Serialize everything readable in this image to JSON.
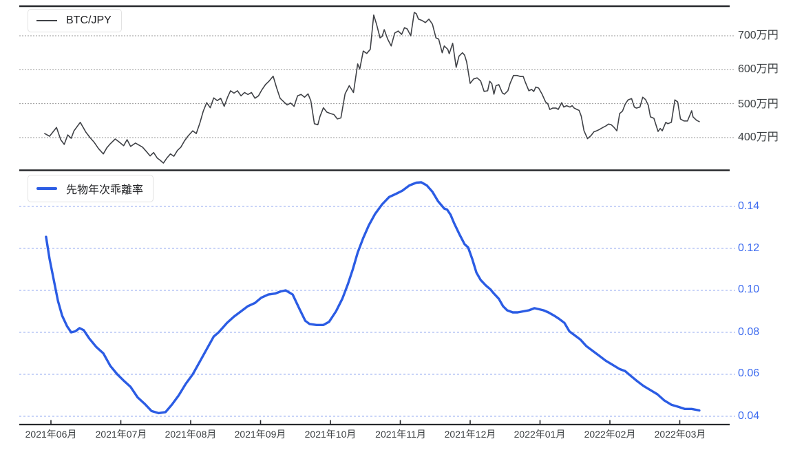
{
  "x_axis": {
    "labels": [
      "2021年06月",
      "2021年07月",
      "2021年08月",
      "2021年09月",
      "2021年10月",
      "2021年11月",
      "2021年12月",
      "2022年01月",
      "2022年02月",
      "2022年03月"
    ]
  },
  "colors": {
    "btc_line": "#3f4146",
    "deviation_line": "#2b5ce4",
    "grid_gray": "#9a9a9a",
    "grid_blue": "#93a9f2",
    "axis_dark": "#26282c",
    "label_dark": "#3c4043",
    "label_blue": "#3d6bef"
  },
  "chart_data": [
    {
      "type": "line",
      "name": "BTC/JPY",
      "color": "#3f4146",
      "ylabel_unit": "万円",
      "ylim": [
        305,
        790
      ],
      "grid": true,
      "legend_position": "top-left",
      "y_ticks": [
        {
          "value": 700,
          "label": "700万円"
        },
        {
          "value": 600,
          "label": "600万円"
        },
        {
          "value": 500,
          "label": "500万円"
        },
        {
          "value": 400,
          "label": "400万円"
        }
      ],
      "x_months": [
        "2021-06",
        "2021-07",
        "2021-08",
        "2021-09",
        "2021-10",
        "2021-11",
        "2021-12",
        "2022-01",
        "2022-02",
        "2022-03"
      ],
      "points": [
        [
          -0.09,
          412
        ],
        [
          -0.02,
          404
        ],
        [
          0.08,
          430
        ],
        [
          0.14,
          394
        ],
        [
          0.19,
          380
        ],
        [
          0.24,
          408
        ],
        [
          0.29,
          398
        ],
        [
          0.33,
          420
        ],
        [
          0.42,
          445
        ],
        [
          0.5,
          416
        ],
        [
          0.56,
          400
        ],
        [
          0.62,
          386
        ],
        [
          0.68,
          368
        ],
        [
          0.75,
          352
        ],
        [
          0.8,
          370
        ],
        [
          0.85,
          382
        ],
        [
          0.92,
          396
        ],
        [
          0.97,
          388
        ],
        [
          1.04,
          376
        ],
        [
          1.09,
          394
        ],
        [
          1.14,
          374
        ],
        [
          1.21,
          384
        ],
        [
          1.31,
          372
        ],
        [
          1.37,
          358
        ],
        [
          1.42,
          346
        ],
        [
          1.47,
          356
        ],
        [
          1.52,
          340
        ],
        [
          1.56,
          334
        ],
        [
          1.61,
          325
        ],
        [
          1.66,
          340
        ],
        [
          1.71,
          352
        ],
        [
          1.76,
          345
        ],
        [
          1.81,
          362
        ],
        [
          1.86,
          372
        ],
        [
          1.91,
          390
        ],
        [
          1.96,
          404
        ],
        [
          2.03,
          420
        ],
        [
          2.08,
          412
        ],
        [
          2.13,
          442
        ],
        [
          2.18,
          478
        ],
        [
          2.23,
          503
        ],
        [
          2.28,
          488
        ],
        [
          2.33,
          517
        ],
        [
          2.38,
          509
        ],
        [
          2.43,
          516
        ],
        [
          2.48,
          492
        ],
        [
          2.53,
          520
        ],
        [
          2.57,
          538
        ],
        [
          2.62,
          531
        ],
        [
          2.67,
          538
        ],
        [
          2.72,
          523
        ],
        [
          2.77,
          533
        ],
        [
          2.82,
          527
        ],
        [
          2.87,
          533
        ],
        [
          2.92,
          516
        ],
        [
          2.97,
          523
        ],
        [
          3.02,
          541
        ],
        [
          3.07,
          556
        ],
        [
          3.12,
          566
        ],
        [
          3.18,
          581
        ],
        [
          3.23,
          547
        ],
        [
          3.28,
          516
        ],
        [
          3.33,
          506
        ],
        [
          3.38,
          496
        ],
        [
          3.43,
          502
        ],
        [
          3.48,
          492
        ],
        [
          3.53,
          523
        ],
        [
          3.58,
          527
        ],
        [
          3.63,
          519
        ],
        [
          3.68,
          529
        ],
        [
          3.72,
          508
        ],
        [
          3.77,
          441
        ],
        [
          3.82,
          438
        ],
        [
          3.85,
          462
        ],
        [
          3.9,
          488
        ],
        [
          3.95,
          475
        ],
        [
          4.0,
          471
        ],
        [
          4.05,
          468
        ],
        [
          4.1,
          455
        ],
        [
          4.15,
          458
        ],
        [
          4.21,
          529
        ],
        [
          4.27,
          553
        ],
        [
          4.33,
          533
        ],
        [
          4.39,
          617
        ],
        [
          4.42,
          602
        ],
        [
          4.47,
          655
        ],
        [
          4.52,
          648
        ],
        [
          4.57,
          660
        ],
        [
          4.62,
          761
        ],
        [
          4.66,
          734
        ],
        [
          4.71,
          694
        ],
        [
          4.74,
          698
        ],
        [
          4.77,
          718
        ],
        [
          4.82,
          690
        ],
        [
          4.87,
          670
        ],
        [
          4.92,
          708
        ],
        [
          4.97,
          714
        ],
        [
          5.02,
          704
        ],
        [
          5.06,
          724
        ],
        [
          5.1,
          720
        ],
        [
          5.15,
          700
        ],
        [
          5.2,
          769
        ],
        [
          5.23,
          765
        ],
        [
          5.26,
          749
        ],
        [
          5.31,
          745
        ],
        [
          5.36,
          739
        ],
        [
          5.41,
          749
        ],
        [
          5.46,
          734
        ],
        [
          5.51,
          694
        ],
        [
          5.55,
          690
        ],
        [
          5.6,
          650
        ],
        [
          5.63,
          670
        ],
        [
          5.68,
          660
        ],
        [
          5.7,
          647
        ],
        [
          5.75,
          678
        ],
        [
          5.8,
          607
        ],
        [
          5.84,
          640
        ],
        [
          5.89,
          650
        ],
        [
          5.92,
          643
        ],
        [
          5.95,
          623
        ],
        [
          6.0,
          560
        ],
        [
          6.05,
          573
        ],
        [
          6.1,
          576
        ],
        [
          6.15,
          567
        ],
        [
          6.2,
          536
        ],
        [
          6.25,
          538
        ],
        [
          6.28,
          566
        ],
        [
          6.31,
          559
        ],
        [
          6.34,
          528
        ],
        [
          6.37,
          553
        ],
        [
          6.41,
          556
        ],
        [
          6.46,
          532
        ],
        [
          6.49,
          528
        ],
        [
          6.54,
          538
        ],
        [
          6.57,
          559
        ],
        [
          6.62,
          583
        ],
        [
          6.67,
          583
        ],
        [
          6.72,
          580
        ],
        [
          6.76,
          580
        ],
        [
          6.79,
          563
        ],
        [
          6.84,
          538
        ],
        [
          6.88,
          542
        ],
        [
          6.91,
          536
        ],
        [
          6.94,
          549
        ],
        [
          6.98,
          546
        ],
        [
          7.03,
          528
        ],
        [
          7.08,
          505
        ],
        [
          7.11,
          500
        ],
        [
          7.14,
          483
        ],
        [
          7.18,
          487
        ],
        [
          7.23,
          487
        ],
        [
          7.26,
          483
        ],
        [
          7.31,
          503
        ],
        [
          7.34,
          490
        ],
        [
          7.38,
          494
        ],
        [
          7.43,
          490
        ],
        [
          7.46,
          494
        ],
        [
          7.49,
          487
        ],
        [
          7.53,
          483
        ],
        [
          7.56,
          480
        ],
        [
          7.59,
          463
        ],
        [
          7.63,
          420
        ],
        [
          7.68,
          397
        ],
        [
          7.73,
          406
        ],
        [
          7.77,
          417
        ],
        [
          7.81,
          420
        ],
        [
          7.85,
          424
        ],
        [
          7.9,
          430
        ],
        [
          7.94,
          434
        ],
        [
          7.98,
          440
        ],
        [
          8.02,
          438
        ],
        [
          8.06,
          430
        ],
        [
          8.1,
          420
        ],
        [
          8.14,
          471
        ],
        [
          8.18,
          478
        ],
        [
          8.22,
          499
        ],
        [
          8.26,
          511
        ],
        [
          8.31,
          515
        ],
        [
          8.35,
          490
        ],
        [
          8.38,
          487
        ],
        [
          8.43,
          490
        ],
        [
          8.47,
          519
        ],
        [
          8.51,
          512
        ],
        [
          8.55,
          495
        ],
        [
          8.58,
          461
        ],
        [
          8.63,
          457
        ],
        [
          8.69,
          418
        ],
        [
          8.72,
          427
        ],
        [
          8.75,
          420
        ],
        [
          8.8,
          445
        ],
        [
          8.83,
          441
        ],
        [
          8.88,
          445
        ],
        [
          8.93,
          511
        ],
        [
          8.97,
          505
        ],
        [
          9.01,
          455
        ],
        [
          9.06,
          449
        ],
        [
          9.11,
          449
        ],
        [
          9.17,
          479
        ],
        [
          9.19,
          461
        ],
        [
          9.24,
          451
        ],
        [
          9.28,
          447
        ]
      ]
    },
    {
      "type": "line",
      "name": "先物年次乖離率",
      "color": "#2b5ce4",
      "ylim": [
        0.036,
        0.157
      ],
      "grid": true,
      "legend_position": "top-left",
      "y_ticks": [
        {
          "value": 0.14,
          "label": "0.14"
        },
        {
          "value": 0.12,
          "label": "0.12"
        },
        {
          "value": 0.1,
          "label": "0.10"
        },
        {
          "value": 0.08,
          "label": "0.08"
        },
        {
          "value": 0.06,
          "label": "0.06"
        },
        {
          "value": 0.04,
          "label": "0.04"
        }
      ],
      "x_months": [
        "2021-06",
        "2021-07",
        "2021-08",
        "2021-09",
        "2021-10",
        "2021-11",
        "2021-12",
        "2022-01",
        "2022-02",
        "2022-03"
      ],
      "points": [
        [
          -0.07,
          0.1255
        ],
        [
          -0.02,
          0.115
        ],
        [
          0.04,
          0.105
        ],
        [
          0.1,
          0.095
        ],
        [
          0.16,
          0.088
        ],
        [
          0.23,
          0.083
        ],
        [
          0.29,
          0.08
        ],
        [
          0.35,
          0.0805
        ],
        [
          0.41,
          0.082
        ],
        [
          0.47,
          0.081
        ],
        [
          0.55,
          0.077
        ],
        [
          0.65,
          0.073
        ],
        [
          0.75,
          0.07
        ],
        [
          0.85,
          0.064
        ],
        [
          0.95,
          0.06
        ],
        [
          1.04,
          0.057
        ],
        [
          1.14,
          0.054
        ],
        [
          1.24,
          0.049
        ],
        [
          1.34,
          0.046
        ],
        [
          1.44,
          0.0425
        ],
        [
          1.54,
          0.0415
        ],
        [
          1.64,
          0.042
        ],
        [
          1.73,
          0.0455
        ],
        [
          1.83,
          0.05
        ],
        [
          1.93,
          0.0555
        ],
        [
          2.03,
          0.06
        ],
        [
          2.13,
          0.066
        ],
        [
          2.23,
          0.072
        ],
        [
          2.33,
          0.078
        ],
        [
          2.4,
          0.08
        ],
        [
          2.52,
          0.0845
        ],
        [
          2.62,
          0.0875
        ],
        [
          2.72,
          0.09
        ],
        [
          2.82,
          0.0925
        ],
        [
          2.92,
          0.094
        ],
        [
          3.01,
          0.0965
        ],
        [
          3.11,
          0.098
        ],
        [
          3.21,
          0.0985
        ],
        [
          3.29,
          0.0995
        ],
        [
          3.36,
          0.1
        ],
        [
          3.46,
          0.098
        ],
        [
          3.56,
          0.091
        ],
        [
          3.64,
          0.0855
        ],
        [
          3.7,
          0.084
        ],
        [
          3.8,
          0.0835
        ],
        [
          3.9,
          0.0835
        ],
        [
          3.98,
          0.085
        ],
        [
          4.08,
          0.09
        ],
        [
          4.17,
          0.096
        ],
        [
          4.25,
          0.103
        ],
        [
          4.32,
          0.11
        ],
        [
          4.39,
          0.118
        ],
        [
          4.47,
          0.125
        ],
        [
          4.55,
          0.131
        ],
        [
          4.64,
          0.1365
        ],
        [
          4.74,
          0.141
        ],
        [
          4.84,
          0.1445
        ],
        [
          4.94,
          0.146
        ],
        [
          5.03,
          0.1475
        ],
        [
          5.13,
          0.15
        ],
        [
          5.23,
          0.1513
        ],
        [
          5.3,
          0.1515
        ],
        [
          5.38,
          0.15
        ],
        [
          5.46,
          0.147
        ],
        [
          5.54,
          0.1425
        ],
        [
          5.63,
          0.139
        ],
        [
          5.67,
          0.1385
        ],
        [
          5.72,
          0.136
        ],
        [
          5.77,
          0.132
        ],
        [
          5.85,
          0.1265
        ],
        [
          5.92,
          0.122
        ],
        [
          5.97,
          0.1205
        ],
        [
          6.03,
          0.115
        ],
        [
          6.09,
          0.1085
        ],
        [
          6.15,
          0.105
        ],
        [
          6.22,
          0.1025
        ],
        [
          6.29,
          0.1005
        ],
        [
          6.34,
          0.0985
        ],
        [
          6.41,
          0.096
        ],
        [
          6.47,
          0.0925
        ],
        [
          6.53,
          0.0905
        ],
        [
          6.61,
          0.0895
        ],
        [
          6.68,
          0.0895
        ],
        [
          6.76,
          0.09
        ],
        [
          6.84,
          0.0905
        ],
        [
          6.92,
          0.0915
        ],
        [
          6.99,
          0.091
        ],
        [
          7.05,
          0.0905
        ],
        [
          7.12,
          0.0895
        ],
        [
          7.2,
          0.088
        ],
        [
          7.27,
          0.0865
        ],
        [
          7.35,
          0.0845
        ],
        [
          7.42,
          0.0805
        ],
        [
          7.5,
          0.0785
        ],
        [
          7.58,
          0.0765
        ],
        [
          7.66,
          0.0735
        ],
        [
          7.74,
          0.0715
        ],
        [
          7.84,
          0.069
        ],
        [
          7.94,
          0.0665
        ],
        [
          8.04,
          0.0645
        ],
        [
          8.14,
          0.0625
        ],
        [
          8.22,
          0.0615
        ],
        [
          8.29,
          0.0595
        ],
        [
          8.38,
          0.057
        ],
        [
          8.48,
          0.0545
        ],
        [
          8.58,
          0.0525
        ],
        [
          8.68,
          0.0505
        ],
        [
          8.78,
          0.0475
        ],
        [
          8.88,
          0.0455
        ],
        [
          8.98,
          0.0445
        ],
        [
          9.07,
          0.0435
        ],
        [
          9.17,
          0.0435
        ],
        [
          9.28,
          0.0428
        ]
      ]
    }
  ]
}
